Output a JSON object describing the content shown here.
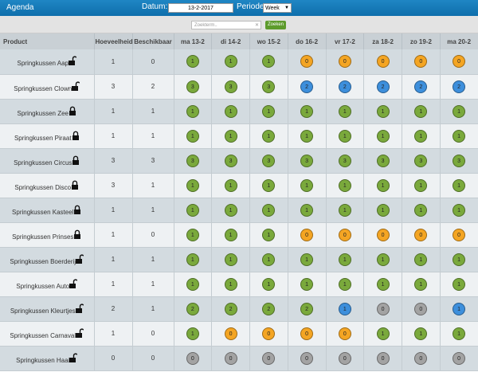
{
  "header": {
    "title": "Agenda",
    "date_label": "Datum:",
    "date_value": "13-2-2017",
    "period_label": "Periode:",
    "period_value": "Week"
  },
  "search": {
    "placeholder": "Zoekterm..",
    "button": "Zoeken"
  },
  "table": {
    "columns": [
      "Product",
      "Hoeveelheid",
      "Beschikbaar",
      "ma 13-2",
      "di 14-2",
      "wo 15-2",
      "do 16-2",
      "vr 17-2",
      "za 18-2",
      "zo 19-2",
      "ma 20-2"
    ],
    "rows": [
      {
        "product": "Springkussen Aap",
        "locked": false,
        "quantity": 1,
        "available": 0,
        "days": [
          {
            "value": 1,
            "color": "#7aa93c"
          },
          {
            "value": 1,
            "color": "#7aa93c"
          },
          {
            "value": 1,
            "color": "#7aa93c"
          },
          {
            "value": 0,
            "color": "#f4a523"
          },
          {
            "value": 0,
            "color": "#f4a523"
          },
          {
            "value": 0,
            "color": "#f4a523"
          },
          {
            "value": 0,
            "color": "#f4a523"
          },
          {
            "value": 0,
            "color": "#f4a523"
          }
        ]
      },
      {
        "product": "Springkussen Clown",
        "locked": false,
        "quantity": 3,
        "available": 2,
        "days": [
          {
            "value": 3,
            "color": "#7aa93c"
          },
          {
            "value": 3,
            "color": "#7aa93c"
          },
          {
            "value": 3,
            "color": "#7aa93c"
          },
          {
            "value": 2,
            "color": "#3d8fdc"
          },
          {
            "value": 2,
            "color": "#3d8fdc"
          },
          {
            "value": 2,
            "color": "#3d8fdc"
          },
          {
            "value": 2,
            "color": "#3d8fdc"
          },
          {
            "value": 2,
            "color": "#3d8fdc"
          }
        ]
      },
      {
        "product": "Springkussen Zee",
        "locked": true,
        "quantity": 1,
        "available": 1,
        "days": [
          {
            "value": 1,
            "color": "#7aa93c"
          },
          {
            "value": 1,
            "color": "#7aa93c"
          },
          {
            "value": 1,
            "color": "#7aa93c"
          },
          {
            "value": 1,
            "color": "#7aa93c"
          },
          {
            "value": 1,
            "color": "#7aa93c"
          },
          {
            "value": 1,
            "color": "#7aa93c"
          },
          {
            "value": 1,
            "color": "#7aa93c"
          },
          {
            "value": 1,
            "color": "#7aa93c"
          }
        ]
      },
      {
        "product": "Springkussen Piraat",
        "locked": true,
        "quantity": 1,
        "available": 1,
        "days": [
          {
            "value": 1,
            "color": "#7aa93c"
          },
          {
            "value": 1,
            "color": "#7aa93c"
          },
          {
            "value": 1,
            "color": "#7aa93c"
          },
          {
            "value": 1,
            "color": "#7aa93c"
          },
          {
            "value": 1,
            "color": "#7aa93c"
          },
          {
            "value": 1,
            "color": "#7aa93c"
          },
          {
            "value": 1,
            "color": "#7aa93c"
          },
          {
            "value": 1,
            "color": "#7aa93c"
          }
        ]
      },
      {
        "product": "Springkussen Circus",
        "locked": true,
        "quantity": 3,
        "available": 3,
        "days": [
          {
            "value": 3,
            "color": "#7aa93c"
          },
          {
            "value": 3,
            "color": "#7aa93c"
          },
          {
            "value": 3,
            "color": "#7aa93c"
          },
          {
            "value": 3,
            "color": "#7aa93c"
          },
          {
            "value": 3,
            "color": "#7aa93c"
          },
          {
            "value": 3,
            "color": "#7aa93c"
          },
          {
            "value": 3,
            "color": "#7aa93c"
          },
          {
            "value": 3,
            "color": "#7aa93c"
          }
        ]
      },
      {
        "product": "Springkussen Disco",
        "locked": true,
        "quantity": 3,
        "available": 1,
        "days": [
          {
            "value": 1,
            "color": "#7aa93c"
          },
          {
            "value": 1,
            "color": "#7aa93c"
          },
          {
            "value": 1,
            "color": "#7aa93c"
          },
          {
            "value": 1,
            "color": "#7aa93c"
          },
          {
            "value": 1,
            "color": "#7aa93c"
          },
          {
            "value": 1,
            "color": "#7aa93c"
          },
          {
            "value": 1,
            "color": "#7aa93c"
          },
          {
            "value": 1,
            "color": "#7aa93c"
          }
        ]
      },
      {
        "product": "Springkussen Kasteel",
        "locked": true,
        "quantity": 1,
        "available": 1,
        "days": [
          {
            "value": 1,
            "color": "#7aa93c"
          },
          {
            "value": 1,
            "color": "#7aa93c"
          },
          {
            "value": 1,
            "color": "#7aa93c"
          },
          {
            "value": 1,
            "color": "#7aa93c"
          },
          {
            "value": 1,
            "color": "#7aa93c"
          },
          {
            "value": 1,
            "color": "#7aa93c"
          },
          {
            "value": 1,
            "color": "#7aa93c"
          },
          {
            "value": 1,
            "color": "#7aa93c"
          }
        ]
      },
      {
        "product": "Springkussen Prinses",
        "locked": true,
        "quantity": 1,
        "available": 0,
        "days": [
          {
            "value": 1,
            "color": "#7aa93c"
          },
          {
            "value": 1,
            "color": "#7aa93c"
          },
          {
            "value": 1,
            "color": "#7aa93c"
          },
          {
            "value": 0,
            "color": "#f4a523"
          },
          {
            "value": 0,
            "color": "#f4a523"
          },
          {
            "value": 0,
            "color": "#f4a523"
          },
          {
            "value": 0,
            "color": "#f4a523"
          },
          {
            "value": 0,
            "color": "#f4a523"
          }
        ]
      },
      {
        "product": "Springkussen Boerderij",
        "locked": false,
        "quantity": 1,
        "available": 1,
        "days": [
          {
            "value": 1,
            "color": "#7aa93c"
          },
          {
            "value": 1,
            "color": "#7aa93c"
          },
          {
            "value": 1,
            "color": "#7aa93c"
          },
          {
            "value": 1,
            "color": "#7aa93c"
          },
          {
            "value": 1,
            "color": "#7aa93c"
          },
          {
            "value": 1,
            "color": "#7aa93c"
          },
          {
            "value": 1,
            "color": "#7aa93c"
          },
          {
            "value": 1,
            "color": "#7aa93c"
          }
        ]
      },
      {
        "product": "Springkussen Auto",
        "locked": false,
        "quantity": 1,
        "available": 1,
        "days": [
          {
            "value": 1,
            "color": "#7aa93c"
          },
          {
            "value": 1,
            "color": "#7aa93c"
          },
          {
            "value": 1,
            "color": "#7aa93c"
          },
          {
            "value": 1,
            "color": "#7aa93c"
          },
          {
            "value": 1,
            "color": "#7aa93c"
          },
          {
            "value": 1,
            "color": "#7aa93c"
          },
          {
            "value": 1,
            "color": "#7aa93c"
          },
          {
            "value": 1,
            "color": "#7aa93c"
          }
        ]
      },
      {
        "product": "Springkussen Kleurtjes",
        "locked": false,
        "quantity": 2,
        "available": 1,
        "days": [
          {
            "value": 2,
            "color": "#7aa93c"
          },
          {
            "value": 2,
            "color": "#7aa93c"
          },
          {
            "value": 2,
            "color": "#7aa93c"
          },
          {
            "value": 2,
            "color": "#7aa93c"
          },
          {
            "value": 1,
            "color": "#3d8fdc"
          },
          {
            "value": 0,
            "color": "#a3a3a3"
          },
          {
            "value": 0,
            "color": "#a3a3a3"
          },
          {
            "value": 1,
            "color": "#3d8fdc"
          }
        ]
      },
      {
        "product": "Springkussen Carnaval",
        "locked": false,
        "quantity": 1,
        "available": 0,
        "days": [
          {
            "value": 1,
            "color": "#7aa93c"
          },
          {
            "value": 0,
            "color": "#f4a523"
          },
          {
            "value": 0,
            "color": "#f4a523"
          },
          {
            "value": 0,
            "color": "#f4a523"
          },
          {
            "value": 0,
            "color": "#f4a523"
          },
          {
            "value": 1,
            "color": "#7aa93c"
          },
          {
            "value": 1,
            "color": "#7aa93c"
          },
          {
            "value": 1,
            "color": "#7aa93c"
          }
        ]
      },
      {
        "product": "Springkussen Haai",
        "locked": false,
        "quantity": 0,
        "available": 0,
        "days": [
          {
            "value": 0,
            "color": "#a3a3a3"
          },
          {
            "value": 0,
            "color": "#a3a3a3"
          },
          {
            "value": 0,
            "color": "#a3a3a3"
          },
          {
            "value": 0,
            "color": "#a3a3a3"
          },
          {
            "value": 0,
            "color": "#a3a3a3"
          },
          {
            "value": 0,
            "color": "#a3a3a3"
          },
          {
            "value": 0,
            "color": "#a3a3a3"
          },
          {
            "value": 0,
            "color": "#a3a3a3"
          }
        ]
      }
    ]
  }
}
